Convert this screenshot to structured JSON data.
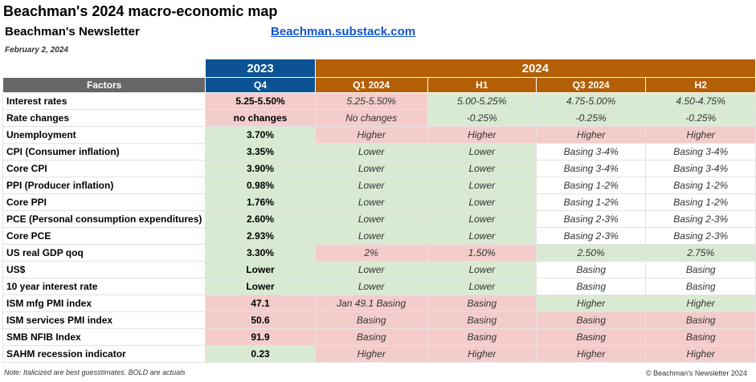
{
  "title": "Beachman's 2024 macro-economic map",
  "subtitle": "Beachman's Newsletter",
  "link": "Beachman.substack.com",
  "date": "February 2, 2024",
  "years": {
    "y2023": "2023",
    "y2024": "2024"
  },
  "headers": [
    "Factors",
    "Q4",
    "Q1 2024",
    "H1",
    "Q3 2024",
    "H2"
  ],
  "colors": {
    "year_2023": "#0b5394",
    "year_2024": "#b45f06",
    "factors_header": "#666666",
    "green": "#d9ead3",
    "red": "#f4cccc",
    "link": "#1155cc"
  },
  "rows": [
    {
      "factor": "Interest rates",
      "cells": [
        {
          "text": "5.25-5.50%",
          "tone": "r"
        },
        {
          "text": "5.25-5.50%",
          "tone": "r"
        },
        {
          "text": "5.00-5.25%",
          "tone": "g"
        },
        {
          "text": "4.75-5.00%",
          "tone": "g"
        },
        {
          "text": "4.50-4.75%",
          "tone": "g"
        }
      ]
    },
    {
      "factor": "Rate changes",
      "cells": [
        {
          "text": "no changes",
          "tone": "r"
        },
        {
          "text": "No changes",
          "tone": "r"
        },
        {
          "text": "-0.25%",
          "tone": "g"
        },
        {
          "text": "-0.25%",
          "tone": "g"
        },
        {
          "text": "-0.25%",
          "tone": "g"
        }
      ]
    },
    {
      "factor": "Unemployment",
      "cells": [
        {
          "text": "3.70%",
          "tone": "g"
        },
        {
          "text": "Higher",
          "tone": "r"
        },
        {
          "text": "Higher",
          "tone": "r"
        },
        {
          "text": "Higher",
          "tone": "r"
        },
        {
          "text": "Higher",
          "tone": "r"
        }
      ]
    },
    {
      "factor": "CPI (Consumer inflation)",
      "cells": [
        {
          "text": "3.35%",
          "tone": "g"
        },
        {
          "text": "Lower",
          "tone": "g"
        },
        {
          "text": "Lower",
          "tone": "g"
        },
        {
          "text": "Basing 3-4%",
          "tone": "w"
        },
        {
          "text": "Basing 3-4%",
          "tone": "w"
        }
      ]
    },
    {
      "factor": "Core CPI",
      "cells": [
        {
          "text": "3.90%",
          "tone": "g"
        },
        {
          "text": "Lower",
          "tone": "g"
        },
        {
          "text": "Lower",
          "tone": "g"
        },
        {
          "text": "Basing 3-4%",
          "tone": "w"
        },
        {
          "text": "Basing 3-4%",
          "tone": "w"
        }
      ]
    },
    {
      "factor": "PPI (Producer inflation)",
      "cells": [
        {
          "text": "0.98%",
          "tone": "g"
        },
        {
          "text": "Lower",
          "tone": "g"
        },
        {
          "text": "Lower",
          "tone": "g"
        },
        {
          "text": "Basing 1-2%",
          "tone": "w"
        },
        {
          "text": "Basing 1-2%",
          "tone": "w"
        }
      ]
    },
    {
      "factor": "Core PPI",
      "cells": [
        {
          "text": "1.76%",
          "tone": "g"
        },
        {
          "text": "Lower",
          "tone": "g"
        },
        {
          "text": "Lower",
          "tone": "g"
        },
        {
          "text": "Basing 1-2%",
          "tone": "w"
        },
        {
          "text": "Basing 1-2%",
          "tone": "w"
        }
      ]
    },
    {
      "factor": "PCE (Personal consumption expenditures)",
      "cells": [
        {
          "text": "2.60%",
          "tone": "g"
        },
        {
          "text": "Lower",
          "tone": "g"
        },
        {
          "text": "Lower",
          "tone": "g"
        },
        {
          "text": "Basing 2-3%",
          "tone": "w"
        },
        {
          "text": "Basing 2-3%",
          "tone": "w"
        }
      ]
    },
    {
      "factor": "Core PCE",
      "cells": [
        {
          "text": "2.93%",
          "tone": "g"
        },
        {
          "text": "Lower",
          "tone": "g"
        },
        {
          "text": "Lower",
          "tone": "g"
        },
        {
          "text": "Basing 2-3%",
          "tone": "w"
        },
        {
          "text": "Basing 2-3%",
          "tone": "w"
        }
      ]
    },
    {
      "factor": "US real GDP qoq",
      "cells": [
        {
          "text": "3.30%",
          "tone": "g"
        },
        {
          "text": "2%",
          "tone": "r"
        },
        {
          "text": "1.50%",
          "tone": "r"
        },
        {
          "text": "2.50%",
          "tone": "g"
        },
        {
          "text": "2.75%",
          "tone": "g"
        }
      ]
    },
    {
      "factor": "US$",
      "cells": [
        {
          "text": "Lower",
          "tone": "g"
        },
        {
          "text": "Lower",
          "tone": "g"
        },
        {
          "text": "Lower",
          "tone": "g"
        },
        {
          "text": "Basing",
          "tone": "w"
        },
        {
          "text": "Basing",
          "tone": "w"
        }
      ]
    },
    {
      "factor": "10 year interest rate",
      "cells": [
        {
          "text": "Lower",
          "tone": "g"
        },
        {
          "text": "Lower",
          "tone": "g"
        },
        {
          "text": "Lower",
          "tone": "g"
        },
        {
          "text": "Basing",
          "tone": "w"
        },
        {
          "text": "Basing",
          "tone": "w"
        }
      ]
    },
    {
      "factor": "ISM mfg PMI index",
      "cells": [
        {
          "text": "47.1",
          "tone": "r"
        },
        {
          "text": "Jan 49.1 Basing",
          "tone": "r"
        },
        {
          "text": "Basing",
          "tone": "r"
        },
        {
          "text": "Higher",
          "tone": "g"
        },
        {
          "text": "Higher",
          "tone": "g"
        }
      ]
    },
    {
      "factor": "ISM services PMI index",
      "cells": [
        {
          "text": "50.6",
          "tone": "r"
        },
        {
          "text": "Basing",
          "tone": "r"
        },
        {
          "text": "Basing",
          "tone": "r"
        },
        {
          "text": "Basing",
          "tone": "r"
        },
        {
          "text": "Basing",
          "tone": "r"
        }
      ]
    },
    {
      "factor": "SMB NFIB Index",
      "cells": [
        {
          "text": "91.9",
          "tone": "r"
        },
        {
          "text": "Basing",
          "tone": "r"
        },
        {
          "text": "Basing",
          "tone": "r"
        },
        {
          "text": "Basing",
          "tone": "r"
        },
        {
          "text": "Basing",
          "tone": "r"
        }
      ]
    },
    {
      "factor": "SAHM recession indicator",
      "cells": [
        {
          "text": "0.23",
          "tone": "g"
        },
        {
          "text": "Higher",
          "tone": "r"
        },
        {
          "text": "Higher",
          "tone": "r"
        },
        {
          "text": "Higher",
          "tone": "r"
        },
        {
          "text": "Higher",
          "tone": "r"
        }
      ]
    }
  ],
  "note": "Note: Italicized are best guesstimates. BOLD are actuals",
  "copyright": "© Beachman's Newsletter 2024"
}
